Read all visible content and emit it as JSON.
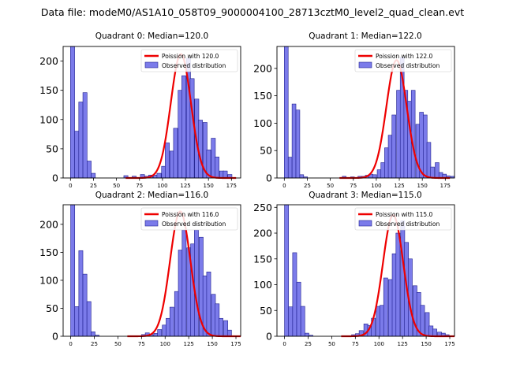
{
  "figure_title": "Data file: modeM0/AS1A10_058T09_9000004100_28713cztM0_level2_quad_clean.evt",
  "colors": {
    "bar_fill": "#7b7bea",
    "bar_edge": "#1f1f8f",
    "curve": "#ee0000",
    "axis": "#000000"
  },
  "chart_data": [
    {
      "type": "bar",
      "title": "Quadrant 0: Median=120.0",
      "median": 120.0,
      "legend": {
        "placement": "top-right",
        "curve_label": "Poission with 120.0",
        "hist_label": "Observed distribution"
      },
      "xlim": [
        -8,
        185
      ],
      "ylim": [
        0,
        225
      ],
      "xticks": [
        0,
        25,
        50,
        75,
        100,
        125,
        150,
        175
      ],
      "yticks": [
        0,
        50,
        100,
        150,
        200
      ],
      "bin_width": 4.5,
      "bins": [
        [
          0,
          225
        ],
        [
          4.5,
          80
        ],
        [
          9,
          130
        ],
        [
          13.5,
          146
        ],
        [
          18,
          29
        ],
        [
          22.5,
          8
        ],
        [
          58,
          4
        ],
        [
          67,
          3
        ],
        [
          76,
          6
        ],
        [
          81,
          3
        ],
        [
          85,
          5
        ],
        [
          90,
          5
        ],
        [
          94,
          8
        ],
        [
          99,
          20
        ],
        [
          103,
          60
        ],
        [
          108,
          46
        ],
        [
          112,
          85
        ],
        [
          117,
          150
        ],
        [
          121,
          175
        ],
        [
          126,
          205
        ],
        [
          130,
          170
        ],
        [
          135,
          135
        ],
        [
          139,
          99
        ],
        [
          144,
          95
        ],
        [
          148,
          48
        ],
        [
          153,
          68
        ],
        [
          157,
          36
        ],
        [
          162,
          12
        ],
        [
          166,
          12
        ],
        [
          171,
          6
        ]
      ],
      "curve": {
        "mean": 120.0,
        "peak": 212
      }
    },
    {
      "type": "bar",
      "title": "Quadrant 1: Median=122.0",
      "median": 122.0,
      "legend": {
        "placement": "top-right",
        "curve_label": "Poission with 122.0",
        "hist_label": "Observed distribution"
      },
      "xlim": [
        -8,
        185
      ],
      "ylim": [
        0,
        240
      ],
      "xticks": [
        0,
        25,
        50,
        75,
        100,
        125,
        150,
        175
      ],
      "yticks": [
        0,
        50,
        100,
        150,
        200
      ],
      "bin_width": 4.2,
      "bins": [
        [
          0,
          240
        ],
        [
          4.2,
          38
        ],
        [
          8.4,
          135
        ],
        [
          12.6,
          124
        ],
        [
          16.8,
          6
        ],
        [
          21,
          2
        ],
        [
          63,
          3
        ],
        [
          72,
          2
        ],
        [
          80,
          3
        ],
        [
          84,
          3
        ],
        [
          88,
          5
        ],
        [
          92,
          7
        ],
        [
          96,
          6
        ],
        [
          101,
          15
        ],
        [
          105,
          28
        ],
        [
          109,
          55
        ],
        [
          113,
          78
        ],
        [
          117,
          115
        ],
        [
          122,
          160
        ],
        [
          126,
          220
        ],
        [
          130,
          160
        ],
        [
          134,
          140
        ],
        [
          138,
          160
        ],
        [
          143,
          98
        ],
        [
          147,
          120
        ],
        [
          151,
          115
        ],
        [
          155,
          65
        ],
        [
          159,
          20
        ],
        [
          164,
          28
        ],
        [
          168,
          10
        ],
        [
          172,
          7
        ],
        [
          176,
          4
        ],
        [
          181,
          3
        ]
      ],
      "curve": {
        "mean": 122.0,
        "peak": 215
      }
    },
    {
      "type": "bar",
      "title": "Quadrant 2: Median=116.0",
      "median": 116.0,
      "legend": {
        "placement": "top-right",
        "curve_label": "Poission with 116.0",
        "hist_label": "Observed distribution"
      },
      "xlim": [
        -8,
        180
      ],
      "ylim": [
        0,
        235
      ],
      "xticks": [
        0,
        25,
        50,
        75,
        100,
        125,
        150,
        175
      ],
      "yticks": [
        0,
        50,
        100,
        150,
        200
      ],
      "bin_width": 4.3,
      "bins": [
        [
          0,
          235
        ],
        [
          4.3,
          53
        ],
        [
          8.6,
          153
        ],
        [
          12.9,
          111
        ],
        [
          17.2,
          62
        ],
        [
          21.5,
          8
        ],
        [
          25.8,
          2
        ],
        [
          75,
          3
        ],
        [
          79,
          6
        ],
        [
          83,
          3
        ],
        [
          88,
          5
        ],
        [
          92,
          12
        ],
        [
          97,
          20
        ],
        [
          101,
          32
        ],
        [
          105,
          52
        ],
        [
          110,
          80
        ],
        [
          114,
          154
        ],
        [
          118,
          190
        ],
        [
          123,
          158
        ],
        [
          127,
          165
        ],
        [
          131,
          190
        ],
        [
          136,
          177
        ],
        [
          140,
          108
        ],
        [
          144,
          115
        ],
        [
          149,
          75
        ],
        [
          153,
          58
        ],
        [
          157,
          32
        ],
        [
          162,
          28
        ],
        [
          166,
          11
        ]
      ],
      "curve": {
        "mean": 116.0,
        "peak": 223
      }
    },
    {
      "type": "bar",
      "title": "Quadrant 3: Median=115.0",
      "median": 115.0,
      "legend": {
        "placement": "top-right",
        "curve_label": "Poission with 115.0",
        "hist_label": "Observed distribution"
      },
      "xlim": [
        -8,
        180
      ],
      "ylim": [
        0,
        255
      ],
      "xticks": [
        0,
        25,
        50,
        75,
        100,
        125,
        150,
        175
      ],
      "yticks": [
        0,
        50,
        100,
        150,
        200,
        250
      ],
      "bin_width": 4.3,
      "bins": [
        [
          0,
          255
        ],
        [
          4.3,
          57
        ],
        [
          8.6,
          162
        ],
        [
          12.9,
          105
        ],
        [
          17.2,
          58
        ],
        [
          21.5,
          6
        ],
        [
          25.8,
          2
        ],
        [
          71,
          3
        ],
        [
          75,
          5
        ],
        [
          79,
          11
        ],
        [
          84,
          24
        ],
        [
          88,
          21
        ],
        [
          92,
          35
        ],
        [
          97,
          58
        ],
        [
          101,
          60
        ],
        [
          105,
          113
        ],
        [
          110,
          110
        ],
        [
          114,
          160
        ],
        [
          118,
          200
        ],
        [
          123,
          224
        ],
        [
          127,
          182
        ],
        [
          131,
          150
        ],
        [
          136,
          98
        ],
        [
          140,
          85
        ],
        [
          144,
          60
        ],
        [
          149,
          46
        ],
        [
          153,
          20
        ],
        [
          157,
          14
        ],
        [
          162,
          8
        ],
        [
          166,
          6
        ],
        [
          170,
          3
        ]
      ],
      "curve": {
        "mean": 115.0,
        "peak": 235
      }
    }
  ]
}
